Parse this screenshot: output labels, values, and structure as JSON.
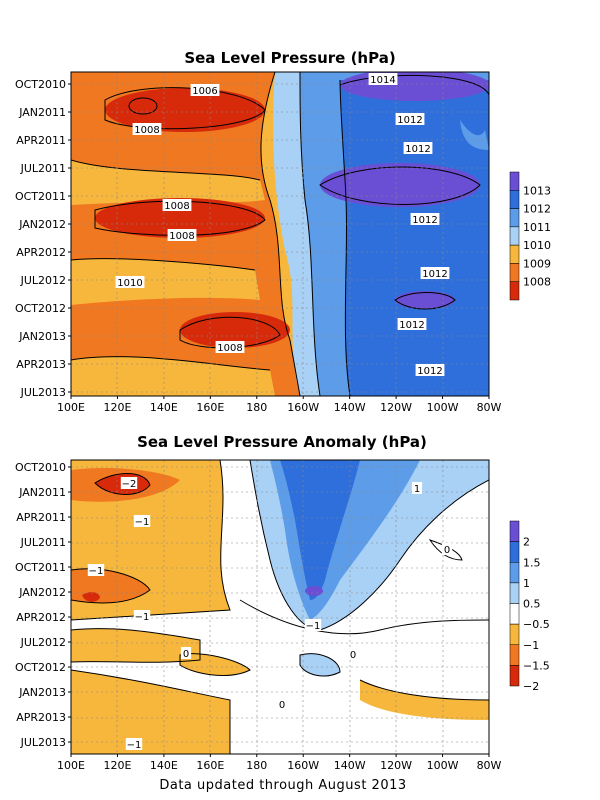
{
  "chart_data": [
    {
      "type": "heatmap",
      "title": "Sea Level Pressure (hPa)",
      "x_ticks": [
        "100E",
        "120E",
        "140E",
        "160E",
        "180",
        "160W",
        "140W",
        "120W",
        "100W",
        "80W"
      ],
      "y_ticks": [
        "OCT2010",
        "JAN2011",
        "APR2011",
        "JUL2011",
        "OCT2011",
        "JAN2012",
        "APR2012",
        "JUL2012",
        "OCT2012",
        "JAN2013",
        "APR2013",
        "JUL2013"
      ],
      "legend": {
        "labels": [
          "1013",
          "1012",
          "1011",
          "1010",
          "1009",
          "1008"
        ],
        "colors": [
          "#6a4fd4",
          "#2f6fdc",
          "#5d9ce8",
          "#a9d0f5",
          "#f7b73c",
          "#f07820",
          "#d62a0a"
        ],
        "position": "right"
      },
      "contour_labels": [
        "1006",
        "1008",
        "1008",
        "1008",
        "1010",
        "1008",
        "1014",
        "1012",
        "1012",
        "1012",
        "1012",
        "1012",
        "1012"
      ],
      "grid": true
    },
    {
      "type": "heatmap",
      "title": "Sea Level Pressure Anomaly (hPa)",
      "x_ticks": [
        "100E",
        "120E",
        "140E",
        "160E",
        "180",
        "160W",
        "140W",
        "120W",
        "100W",
        "80W"
      ],
      "y_ticks": [
        "OCT2010",
        "JAN2011",
        "APR2011",
        "JUL2011",
        "OCT2011",
        "JAN2012",
        "APR2012",
        "JUL2012",
        "OCT2012",
        "JAN2013",
        "APR2013",
        "JUL2013"
      ],
      "legend": {
        "labels": [
          "2",
          "1.5",
          "1",
          "0.5",
          "−0.5",
          "−1",
          "−1.5",
          "−2"
        ],
        "colors": [
          "#6a4fd4",
          "#2f6fdc",
          "#5d9ce8",
          "#a9d0f5",
          "#ffffff",
          "#f7b73c",
          "#f07820",
          "#d62a0a"
        ],
        "position": "right"
      },
      "contour_labels": [
        "−2",
        "−1",
        "−1",
        "−1",
        "−1",
        "−1",
        "1",
        "0",
        "0",
        "0",
        "0"
      ],
      "grid": true
    }
  ],
  "footer": "Data updated through August 2013"
}
